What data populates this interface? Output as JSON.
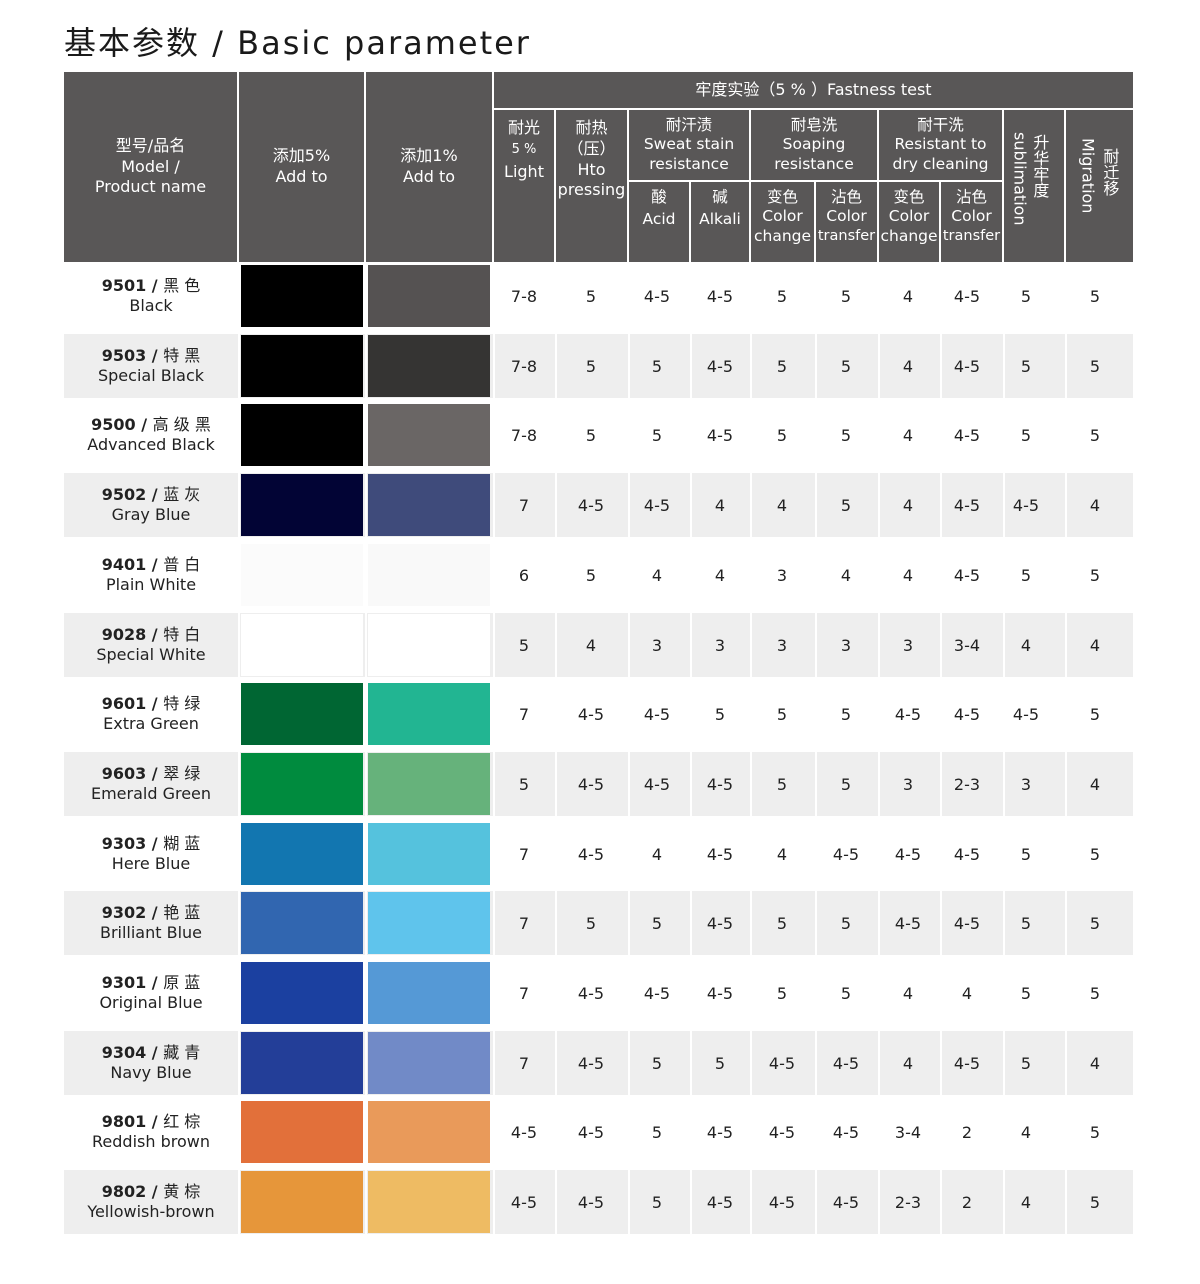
{
  "title": "基本参数 / Basic parameter",
  "header": {
    "model": [
      "型号/品名",
      "Model /",
      "Product name"
    ],
    "add5": [
      "添加5%",
      "Add to"
    ],
    "add1": [
      "添加1%",
      "Add to"
    ],
    "fastness": "牢度实验（5 % ）Fastness test",
    "light": [
      "耐光",
      "5 %",
      "Light"
    ],
    "hot": [
      "耐热",
      "（压）",
      "Hto",
      "pressing"
    ],
    "sweat": [
      "耐汗渍",
      "Sweat stain",
      "resistance"
    ],
    "soap": [
      "耐皂洗",
      "Soaping",
      "resistance"
    ],
    "dry": [
      "耐干洗",
      "Resistant to",
      "dry cleaning"
    ],
    "sublimation": [
      "升华牢度",
      "sublimation"
    ],
    "migration": [
      "耐迁移",
      "Migration"
    ],
    "acid": [
      "酸",
      "Acid"
    ],
    "alkali": [
      "碱",
      "Alkali"
    ],
    "soap_change": [
      "变色",
      "Color",
      "change"
    ],
    "soap_transfer": [
      "沾色",
      "Color",
      "transfer"
    ],
    "dry_change": [
      "变色",
      "Color",
      "change"
    ],
    "dry_transfer": [
      "沾色",
      "Color",
      "transfer"
    ]
  },
  "rows": [
    {
      "code": "9501",
      "cn": "黑 色",
      "en": "Black",
      "c5": "#000000",
      "c1": "#555252",
      "v": [
        "7-8",
        "5",
        "4-5",
        "4-5",
        "5",
        "5",
        "4",
        "4-5",
        "5",
        "5"
      ]
    },
    {
      "code": "9503",
      "cn": "特 黑",
      "en": "Special Black",
      "c5": "#000000",
      "c1": "#353433",
      "v": [
        "7-8",
        "5",
        "5",
        "4-5",
        "5",
        "5",
        "4",
        "4-5",
        "5",
        "5"
      ]
    },
    {
      "code": "9500",
      "cn": "高 级 黑",
      "en": "Advanced Black",
      "c5": "#000000",
      "c1": "#6a6665",
      "v": [
        "7-8",
        "5",
        "5",
        "4-5",
        "5",
        "5",
        "4",
        "4-5",
        "5",
        "5"
      ]
    },
    {
      "code": "9502",
      "cn": "蓝 灰",
      "en": "Gray Blue",
      "c5": "#020435",
      "c1": "#3f4b7b",
      "v": [
        "7",
        "4-5",
        "4-5",
        "4",
        "4",
        "5",
        "4",
        "4-5",
        "4-5",
        "4"
      ]
    },
    {
      "code": "9401",
      "cn": "普 白",
      "en": "Plain White",
      "c5": "#fbfbfb",
      "c1": "#f9f9f9",
      "v": [
        "6",
        "5",
        "4",
        "4",
        "3",
        "4",
        "4",
        "4-5",
        "5",
        "5"
      ]
    },
    {
      "code": "9028",
      "cn": "特 白",
      "en": "Special White",
      "c5": "#ffffff",
      "c1": "#ffffff",
      "v": [
        "5",
        "4",
        "3",
        "3",
        "3",
        "3",
        "3",
        "3-4",
        "4",
        "4"
      ]
    },
    {
      "code": "9601",
      "cn": "特 绿",
      "en": "Extra Green",
      "c5": "#006633",
      "c1": "#22b592",
      "v": [
        "7",
        "4-5",
        "4-5",
        "5",
        "5",
        "5",
        "4-5",
        "4-5",
        "4-5",
        "5"
      ]
    },
    {
      "code": "9603",
      "cn": "翠 绿",
      "en": "Emerald Green",
      "c5": "#008b3e",
      "c1": "#66b27b",
      "v": [
        "5",
        "4-5",
        "4-5",
        "4-5",
        "5",
        "5",
        "3",
        "2-3",
        "3",
        "4"
      ]
    },
    {
      "code": "9303",
      "cn": "糊 蓝",
      "en": "Here Blue",
      "c5": "#1276b0",
      "c1": "#55c2dd",
      "v": [
        "7",
        "4-5",
        "4",
        "4-5",
        "4",
        "4-5",
        "4-5",
        "4-5",
        "5",
        "5"
      ]
    },
    {
      "code": "9302",
      "cn": "艳 蓝",
      "en": "Brilliant Blue",
      "c5": "#3166b0",
      "c1": "#5fc4ec",
      "v": [
        "7",
        "5",
        "5",
        "4-5",
        "5",
        "5",
        "4-5",
        "4-5",
        "5",
        "5"
      ]
    },
    {
      "code": "9301",
      "cn": "原 蓝",
      "en": "Original Blue",
      "c5": "#1b40a0",
      "c1": "#5599d6",
      "v": [
        "7",
        "4-5",
        "4-5",
        "4-5",
        "5",
        "5",
        "4",
        "4",
        "5",
        "5"
      ]
    },
    {
      "code": "9304",
      "cn": "藏 青",
      "en": "Navy Blue",
      "c5": "#233e98",
      "c1": "#718ac7",
      "v": [
        "7",
        "4-5",
        "5",
        "5",
        "4-5",
        "4-5",
        "4",
        "4-5",
        "5",
        "4"
      ]
    },
    {
      "code": "9801",
      "cn": "红 棕",
      "en": "Reddish brown",
      "c5": "#e2703a",
      "c1": "#e99a5a",
      "v": [
        "4-5",
        "4-5",
        "5",
        "4-5",
        "4-5",
        "4-5",
        "3-4",
        "2",
        "4",
        "5"
      ]
    },
    {
      "code": "9802",
      "cn": "黄 棕",
      "en": "Yellowish-brown",
      "c5": "#e6963a",
      "c1": "#eebb63",
      "v": [
        "4-5",
        "4-5",
        "5",
        "4-5",
        "4-5",
        "4-5",
        "2-3",
        "2",
        "4",
        "5"
      ]
    }
  ]
}
